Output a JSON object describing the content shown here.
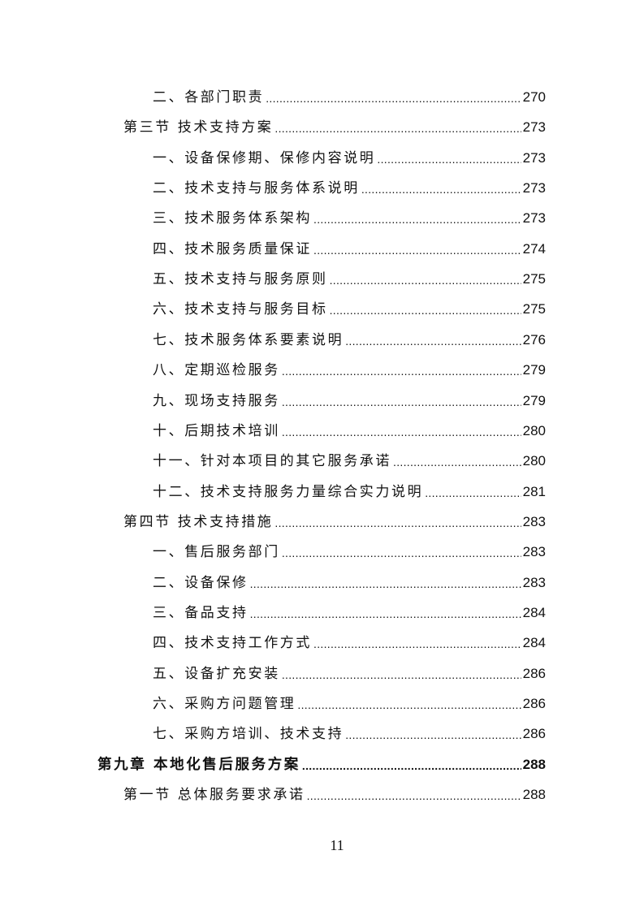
{
  "toc": [
    {
      "level": 2,
      "title": "二、各部门职责",
      "page": "270"
    },
    {
      "level": 1,
      "title": "第三节 技术支持方案",
      "page": "273"
    },
    {
      "level": 2,
      "title": "一、设备保修期、保修内容说明",
      "page": "273"
    },
    {
      "level": 2,
      "title": "二、技术支持与服务体系说明",
      "page": "273"
    },
    {
      "level": 2,
      "title": "三、技术服务体系架构",
      "page": "273"
    },
    {
      "level": 2,
      "title": "四、技术服务质量保证",
      "page": "274"
    },
    {
      "level": 2,
      "title": "五、技术支持与服务原则",
      "page": "275"
    },
    {
      "level": 2,
      "title": "六、技术支持与服务目标",
      "page": "275"
    },
    {
      "level": 2,
      "title": "七、技术服务体系要素说明",
      "page": "276"
    },
    {
      "level": 2,
      "title": "八、定期巡检服务",
      "page": "279"
    },
    {
      "level": 2,
      "title": "九、现场支持服务",
      "page": "279"
    },
    {
      "level": 2,
      "title": "十、后期技术培训",
      "page": "280"
    },
    {
      "level": 2,
      "title": "十一、针对本项目的其它服务承诺",
      "page": "280"
    },
    {
      "level": 2,
      "title": "十二、技术支持服务力量综合实力说明",
      "page": "281"
    },
    {
      "level": 1,
      "title": "第四节 技术支持措施",
      "page": "283"
    },
    {
      "level": 2,
      "title": "一、售后服务部门",
      "page": "283"
    },
    {
      "level": 2,
      "title": "二、设备保修",
      "page": "283"
    },
    {
      "level": 2,
      "title": "三、备品支持",
      "page": "284"
    },
    {
      "level": 2,
      "title": "四、技术支持工作方式",
      "page": "284"
    },
    {
      "level": 2,
      "title": "五、设备扩充安装",
      "page": "286"
    },
    {
      "level": 2,
      "title": "六、采购方问题管理",
      "page": "286"
    },
    {
      "level": 2,
      "title": "七、采购方培训、技术支持",
      "page": "286"
    },
    {
      "level": 0,
      "title": "第九章 本地化售后服务方案",
      "page": "288"
    },
    {
      "level": 1,
      "title": "第一节 总体服务要求承诺",
      "page": "288"
    }
  ],
  "footer": {
    "page_number": "11"
  }
}
